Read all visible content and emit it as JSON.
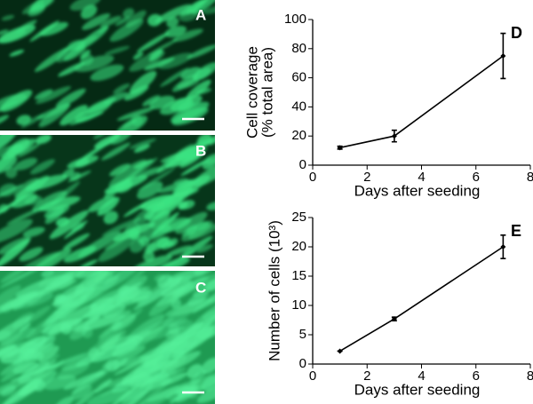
{
  "image_panels": [
    {
      "label": "A"
    },
    {
      "label": "B"
    },
    {
      "label": "C"
    }
  ],
  "chart_data": [
    {
      "type": "line",
      "panel_label": "D",
      "ylabel": [
        "Cell coverage",
        "(% total area)"
      ],
      "xlabel": "Days after seeding",
      "x": [
        1,
        3,
        7
      ],
      "series": [
        {
          "color": "#000000",
          "values": [
            12,
            20,
            75
          ],
          "errors": [
            1,
            4,
            15.5
          ]
        }
      ],
      "xlim": [
        0,
        8
      ],
      "xticks": [
        0,
        2,
        4,
        6,
        8
      ],
      "ylim": [
        0,
        100
      ],
      "yticks": [
        0,
        20,
        40,
        60,
        80,
        100
      ]
    },
    {
      "type": "line",
      "panel_label": "E",
      "ylabel": [
        "Number of cells (10³)"
      ],
      "xlabel": "Days after seeding",
      "x": [
        1,
        3,
        7
      ],
      "series": [
        {
          "color": "#000000",
          "values": [
            2.2,
            7.7,
            20
          ],
          "errors": [
            0,
            0.3,
            2
          ]
        }
      ],
      "xlim": [
        0,
        8
      ],
      "xticks": [
        0,
        2,
        4,
        6,
        8
      ],
      "ylim": [
        0,
        25
      ],
      "yticks": [
        0,
        5,
        10,
        15,
        20,
        25
      ]
    }
  ]
}
